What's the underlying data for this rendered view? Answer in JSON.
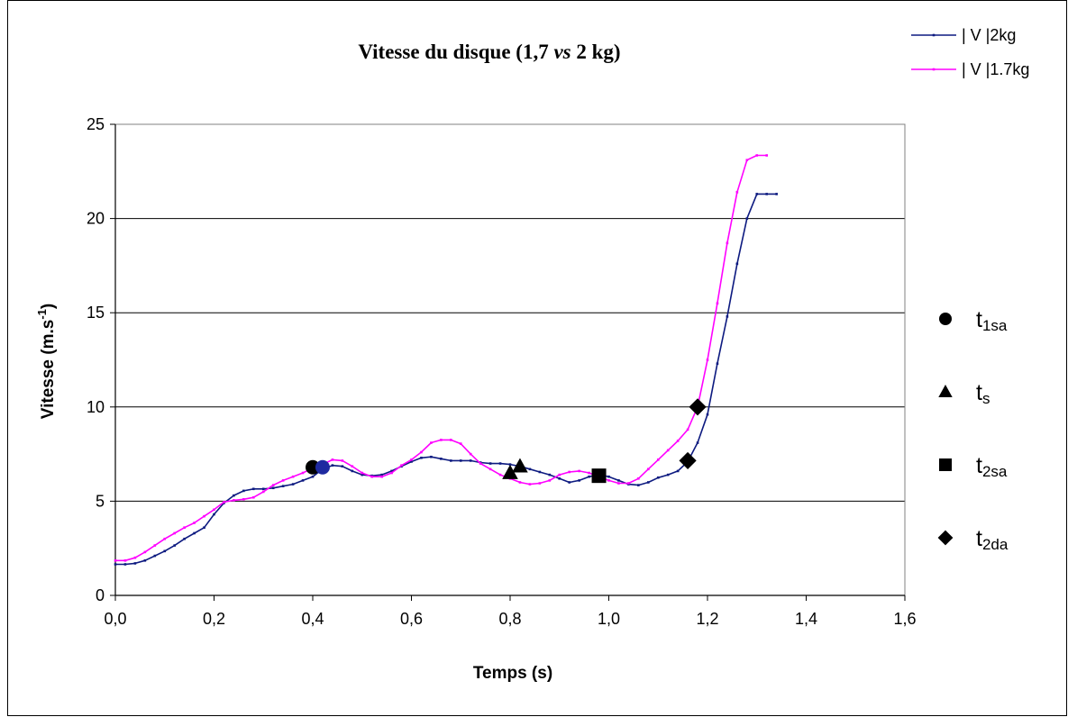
{
  "chart_data": {
    "type": "line",
    "title": {
      "prefix": "Vitesse du disque (1,7 ",
      "italic": "vs",
      "suffix": " 2 kg)"
    },
    "xlabel": "Temps (s)",
    "ylabel": {
      "main": "Vitesse (m.s",
      "sup": "-1",
      "end": ")"
    },
    "xlim": [
      0,
      1.6
    ],
    "ylim": [
      0,
      25
    ],
    "xticks": [
      0,
      0.2,
      0.4,
      0.6,
      0.8,
      1.0,
      1.2,
      1.4,
      1.6
    ],
    "xtick_labels": [
      "0,0",
      "0,2",
      "0,4",
      "0,6",
      "0,8",
      "1,0",
      "1,2",
      "1,4",
      "1,6"
    ],
    "yticks": [
      0,
      5,
      10,
      15,
      20,
      25
    ],
    "ytick_labels": [
      "0",
      "5",
      "10",
      "15",
      "20",
      "25"
    ],
    "grid": "horizontal",
    "legend_position": "top-right",
    "series": [
      {
        "name": "| V |2kg",
        "color": "#0d1a80",
        "points": [
          [
            0.0,
            1.65
          ],
          [
            0.02,
            1.65
          ],
          [
            0.04,
            1.7
          ],
          [
            0.06,
            1.85
          ],
          [
            0.08,
            2.1
          ],
          [
            0.1,
            2.35
          ],
          [
            0.12,
            2.65
          ],
          [
            0.14,
            3.0
          ],
          [
            0.16,
            3.3
          ],
          [
            0.18,
            3.6
          ],
          [
            0.2,
            4.3
          ],
          [
            0.22,
            4.9
          ],
          [
            0.24,
            5.3
          ],
          [
            0.26,
            5.55
          ],
          [
            0.28,
            5.65
          ],
          [
            0.3,
            5.65
          ],
          [
            0.32,
            5.7
          ],
          [
            0.34,
            5.8
          ],
          [
            0.36,
            5.9
          ],
          [
            0.38,
            6.1
          ],
          [
            0.4,
            6.3
          ],
          [
            0.42,
            6.7
          ],
          [
            0.44,
            6.9
          ],
          [
            0.46,
            6.85
          ],
          [
            0.48,
            6.6
          ],
          [
            0.5,
            6.4
          ],
          [
            0.52,
            6.35
          ],
          [
            0.54,
            6.4
          ],
          [
            0.56,
            6.6
          ],
          [
            0.58,
            6.85
          ],
          [
            0.6,
            7.1
          ],
          [
            0.62,
            7.3
          ],
          [
            0.64,
            7.35
          ],
          [
            0.66,
            7.25
          ],
          [
            0.68,
            7.15
          ],
          [
            0.7,
            7.15
          ],
          [
            0.72,
            7.15
          ],
          [
            0.74,
            7.05
          ],
          [
            0.76,
            7.0
          ],
          [
            0.78,
            7.0
          ],
          [
            0.8,
            6.95
          ],
          [
            0.82,
            6.85
          ],
          [
            0.84,
            6.7
          ],
          [
            0.86,
            6.55
          ],
          [
            0.88,
            6.4
          ],
          [
            0.9,
            6.2
          ],
          [
            0.92,
            6.0
          ],
          [
            0.94,
            6.1
          ],
          [
            0.96,
            6.3
          ],
          [
            0.98,
            6.4
          ],
          [
            1.0,
            6.3
          ],
          [
            1.02,
            6.1
          ],
          [
            1.04,
            5.9
          ],
          [
            1.06,
            5.85
          ],
          [
            1.08,
            6.0
          ],
          [
            1.1,
            6.25
          ],
          [
            1.12,
            6.4
          ],
          [
            1.14,
            6.6
          ],
          [
            1.16,
            7.1
          ],
          [
            1.18,
            8.1
          ],
          [
            1.2,
            9.6
          ],
          [
            1.22,
            12.3
          ],
          [
            1.24,
            14.8
          ],
          [
            1.26,
            17.6
          ],
          [
            1.28,
            20.0
          ],
          [
            1.3,
            21.3
          ],
          [
            1.32,
            21.3
          ],
          [
            1.34,
            21.3
          ]
        ]
      },
      {
        "name": "| V |1.7kg",
        "color": "#ff00ff",
        "points": [
          [
            0.0,
            1.85
          ],
          [
            0.02,
            1.85
          ],
          [
            0.04,
            2.0
          ],
          [
            0.06,
            2.3
          ],
          [
            0.08,
            2.65
          ],
          [
            0.1,
            3.0
          ],
          [
            0.12,
            3.3
          ],
          [
            0.14,
            3.6
          ],
          [
            0.16,
            3.85
          ],
          [
            0.18,
            4.2
          ],
          [
            0.2,
            4.55
          ],
          [
            0.22,
            4.95
          ],
          [
            0.24,
            5.05
          ],
          [
            0.26,
            5.1
          ],
          [
            0.28,
            5.2
          ],
          [
            0.3,
            5.5
          ],
          [
            0.32,
            5.85
          ],
          [
            0.34,
            6.1
          ],
          [
            0.36,
            6.3
          ],
          [
            0.38,
            6.5
          ],
          [
            0.4,
            6.75
          ],
          [
            0.42,
            6.95
          ],
          [
            0.44,
            7.2
          ],
          [
            0.46,
            7.15
          ],
          [
            0.48,
            6.85
          ],
          [
            0.5,
            6.5
          ],
          [
            0.52,
            6.3
          ],
          [
            0.54,
            6.3
          ],
          [
            0.56,
            6.5
          ],
          [
            0.58,
            6.9
          ],
          [
            0.6,
            7.2
          ],
          [
            0.62,
            7.6
          ],
          [
            0.64,
            8.1
          ],
          [
            0.66,
            8.25
          ],
          [
            0.68,
            8.25
          ],
          [
            0.7,
            8.05
          ],
          [
            0.72,
            7.5
          ],
          [
            0.74,
            7.0
          ],
          [
            0.76,
            6.7
          ],
          [
            0.78,
            6.4
          ],
          [
            0.8,
            6.2
          ],
          [
            0.82,
            6.0
          ],
          [
            0.84,
            5.9
          ],
          [
            0.86,
            5.95
          ],
          [
            0.88,
            6.1
          ],
          [
            0.9,
            6.4
          ],
          [
            0.92,
            6.55
          ],
          [
            0.94,
            6.6
          ],
          [
            0.96,
            6.5
          ],
          [
            0.98,
            6.3
          ],
          [
            1.0,
            6.1
          ],
          [
            1.02,
            5.95
          ],
          [
            1.04,
            5.95
          ],
          [
            1.06,
            6.2
          ],
          [
            1.08,
            6.7
          ],
          [
            1.1,
            7.2
          ],
          [
            1.12,
            7.7
          ],
          [
            1.14,
            8.2
          ],
          [
            1.16,
            8.8
          ],
          [
            1.18,
            10.0
          ],
          [
            1.2,
            12.5
          ],
          [
            1.22,
            15.5
          ],
          [
            1.24,
            18.7
          ],
          [
            1.26,
            21.4
          ],
          [
            1.28,
            23.1
          ],
          [
            1.3,
            23.35
          ],
          [
            1.32,
            23.35
          ]
        ]
      }
    ],
    "markers": [
      {
        "shape": "circle",
        "x": 0.4,
        "y": 6.8,
        "color": "#000000"
      },
      {
        "shape": "circle",
        "x": 0.42,
        "y": 6.8,
        "color": "#1f2aa0"
      },
      {
        "shape": "triangle",
        "x": 0.8,
        "y": 6.5,
        "color": "#000000"
      },
      {
        "shape": "triangle",
        "x": 0.82,
        "y": 6.85,
        "color": "#000000"
      },
      {
        "shape": "square",
        "x": 0.98,
        "y": 6.35,
        "color": "#000000"
      },
      {
        "shape": "diamond",
        "x": 1.16,
        "y": 7.15,
        "color": "#000000"
      },
      {
        "shape": "diamond",
        "x": 1.18,
        "y": 10.0,
        "color": "#000000"
      }
    ],
    "marker_legend": [
      {
        "shape": "circle",
        "main": "t",
        "sub": "1sa"
      },
      {
        "shape": "triangle",
        "main": "t",
        "sub": "s"
      },
      {
        "shape": "square",
        "main": "t",
        "sub": "2sa"
      },
      {
        "shape": "diamond",
        "main": "t",
        "sub": "2da"
      }
    ]
  }
}
